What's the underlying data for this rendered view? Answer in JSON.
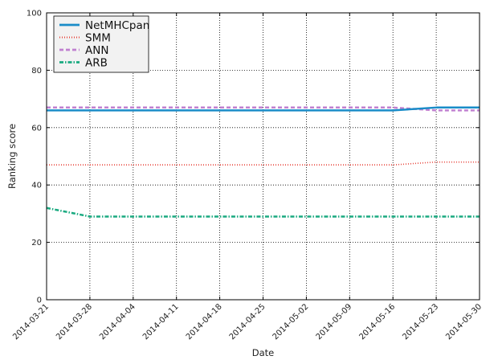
{
  "chart_data": {
    "type": "line",
    "xlabel": "Date",
    "ylabel": "Ranking score",
    "x": [
      "2014-03-21",
      "2014-03-28",
      "2014-04-04",
      "2014-04-11",
      "2014-04-18",
      "2014-04-25",
      "2014-05-02",
      "2014-05-09",
      "2014-05-16",
      "2014-05-23",
      "2014-05-30"
    ],
    "ylim": [
      0,
      100
    ],
    "yticks": [
      0,
      20,
      40,
      60,
      80,
      100
    ],
    "grid": true,
    "legend_position": "top-left",
    "series": [
      {
        "name": "NetMHCpan",
        "color": "#1a8cc8",
        "style": "solid",
        "values": [
          66,
          66,
          66,
          66,
          66,
          66,
          66,
          66,
          66,
          67,
          67
        ]
      },
      {
        "name": "SMM",
        "color": "#e8453c",
        "style": "dotted",
        "values": [
          47,
          47,
          47,
          47,
          47,
          47,
          47,
          47,
          47,
          48,
          48
        ]
      },
      {
        "name": "ANN",
        "color": "#c080d0",
        "style": "dashed",
        "values": [
          67,
          67,
          67,
          67,
          67,
          67,
          67,
          67,
          67,
          66,
          66
        ]
      },
      {
        "name": "ARB",
        "color": "#1aaa80",
        "style": "dashdot",
        "values": [
          32,
          29,
          29,
          29,
          29,
          29,
          29,
          29,
          29,
          29,
          29
        ]
      }
    ]
  }
}
